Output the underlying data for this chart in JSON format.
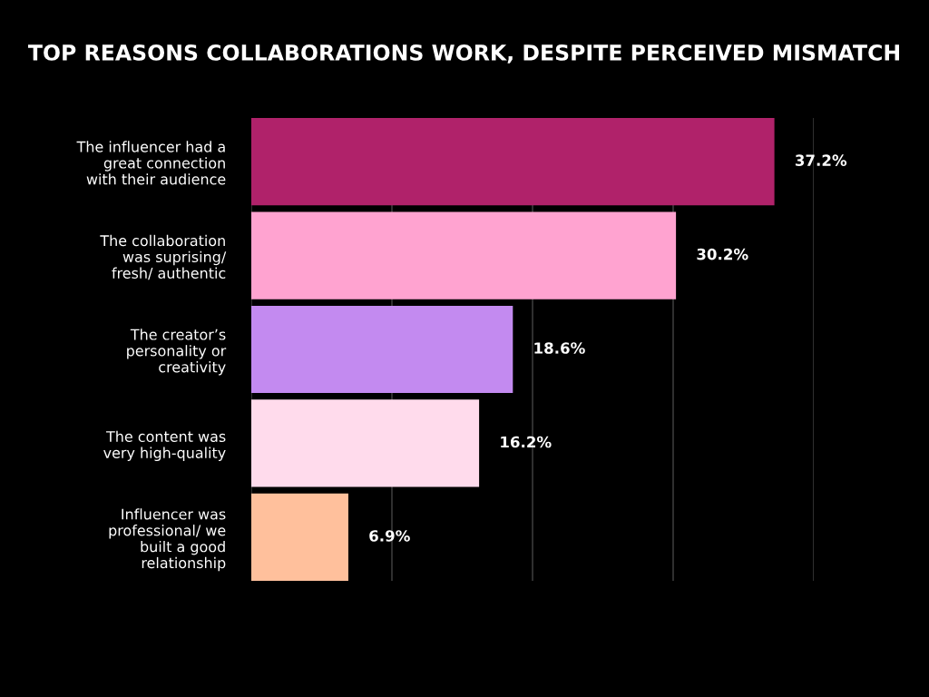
{
  "chart_data": {
    "type": "bar",
    "orientation": "horizontal",
    "title": "TOP REASONS COLLABORATIONS WORK, DESPITE PERCEIVED MISMATCH",
    "categories": [
      "The influencer had a\ngreat connection\nwith their audience",
      "The collaboration\nwas suprising/\nfresh/ authentic",
      "The creator’s\npersonality or\ncreativity",
      "The content was\nvery high-quality",
      "Influencer was\nprofessional/ we\nbuilt a good\nrelationship"
    ],
    "values": [
      37.2,
      30.2,
      18.6,
      16.2,
      6.9
    ],
    "colors": [
      "#b0226a",
      "#ffa3d0",
      "#c38af0",
      "#ffdbec",
      "#ffc09c"
    ],
    "value_labels": [
      "37.2%",
      "30.2%",
      "18.6%",
      "16.2%",
      "6.9%"
    ],
    "xlim": [
      0,
      40
    ],
    "xticks": [
      {
        "value": 0,
        "label": null
      },
      {
        "value": 10,
        "label": null
      },
      {
        "value": 20,
        "label": null
      },
      {
        "value": 30,
        "label": null
      },
      {
        "value": 40,
        "label": null
      }
    ],
    "tick_labels": "y",
    "grid": "x",
    "legend": false
  }
}
